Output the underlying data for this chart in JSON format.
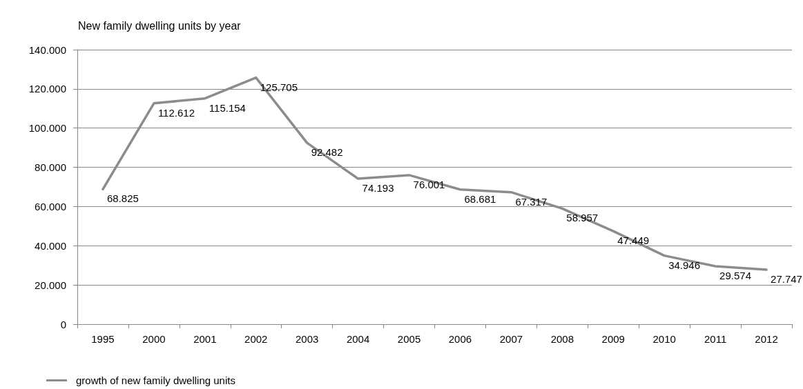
{
  "chart_data": {
    "type": "line",
    "title": "New family dwelling units by year",
    "categories": [
      "1995",
      "2000",
      "2001",
      "2002",
      "2003",
      "2004",
      "2005",
      "2006",
      "2007",
      "2008",
      "2009",
      "2010",
      "2011",
      "2012"
    ],
    "series": [
      {
        "name": "growth of new family dwelling units",
        "color": "#8c8c8c",
        "values": [
          68825,
          112612,
          115154,
          125705,
          92482,
          74193,
          76001,
          68681,
          67317,
          58957,
          47449,
          34946,
          29574,
          27747
        ],
        "value_labels": [
          "68.825",
          "112.612",
          "115.154",
          "125.705",
          "92.482",
          "74.193",
          "76.001",
          "68.681",
          "67.317",
          "58.957",
          "47.449",
          "34.946",
          "29.574",
          "27.747"
        ]
      }
    ],
    "ylim": [
      0,
      140000
    ],
    "yticks": [
      0,
      {
        "value": 20000,
        "label": "20.000"
      },
      {
        "value": 40000,
        "label": "40.000"
      },
      {
        "value": 60000,
        "label": "60.000"
      },
      {
        "value": 80000,
        "label": "80.000"
      },
      {
        "value": 100000,
        "label": "100.000"
      },
      {
        "value": 120000,
        "label": "120.000"
      },
      {
        "value": 140000,
        "label": "140.000"
      }
    ],
    "grid": "y",
    "legend": "bottom left",
    "marker": "none",
    "line_style": "solid"
  }
}
